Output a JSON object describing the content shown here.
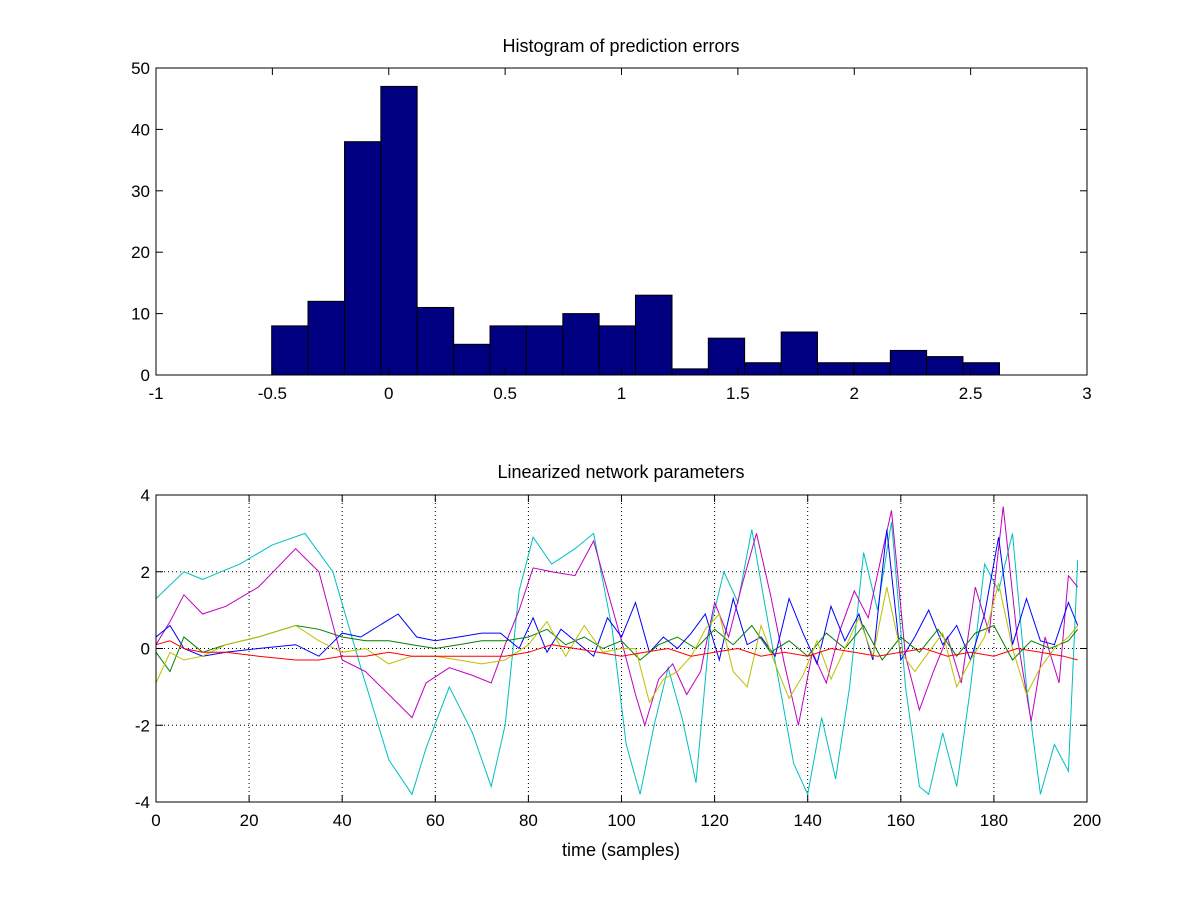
{
  "chart_data": [
    {
      "type": "bar",
      "title": "Histogram of prediction errors",
      "xlabel": "",
      "ylabel": "",
      "xlim": [
        -1,
        3
      ],
      "ylim": [
        0,
        50
      ],
      "xticks": [
        "-1",
        "-0.5",
        "0",
        "0.5",
        "1",
        "1.5",
        "2",
        "2.5",
        "3"
      ],
      "yticks": [
        "0",
        "10",
        "20",
        "30",
        "40",
        "50"
      ],
      "grid": false,
      "bar_color": "#000080",
      "bin_edges": [
        -0.503,
        -0.347,
        -0.19,
        -0.034,
        0.122,
        0.279,
        0.435,
        0.591,
        0.748,
        0.904,
        1.06,
        1.217,
        1.373,
        1.529,
        1.686,
        1.842,
        1.998,
        2.155,
        2.311,
        2.467,
        2.624
      ],
      "values": [
        8,
        12,
        38,
        47,
        11,
        5,
        8,
        8,
        10,
        8,
        13,
        1,
        6,
        2,
        7,
        2,
        2,
        4,
        3,
        2
      ]
    },
    {
      "type": "line",
      "title": "Linearized network parameters",
      "xlabel": "time (samples)",
      "ylabel": "",
      "xlim": [
        0,
        200
      ],
      "ylim": [
        -4,
        4
      ],
      "xticks": [
        "0",
        "20",
        "40",
        "60",
        "80",
        "100",
        "120",
        "140",
        "160",
        "180",
        "200"
      ],
      "yticks": [
        "-4",
        "-2",
        "0",
        "2",
        "4"
      ],
      "grid": true,
      "series": [
        {
          "color": "#00bfbf",
          "x": [
            0,
            6,
            10,
            18,
            25,
            32,
            38,
            44,
            50,
            55,
            58,
            63,
            68,
            72,
            75,
            78,
            81,
            85,
            90,
            94,
            98,
            101,
            104,
            107,
            110,
            113,
            116,
            119,
            122,
            125,
            128,
            131,
            134,
            137,
            140,
            143,
            146,
            149,
            152,
            155,
            158,
            161,
            164,
            166,
            169,
            172,
            175,
            178,
            181,
            184,
            187,
            190,
            193,
            196,
            198
          ],
          "y": [
            1.3,
            2.0,
            1.8,
            2.2,
            2.7,
            3.0,
            2.0,
            -0.5,
            -2.9,
            -3.8,
            -2.6,
            -1.0,
            -2.2,
            -3.6,
            -2.0,
            1.5,
            2.9,
            2.2,
            2.6,
            3.0,
            0.5,
            -2.5,
            -3.8,
            -2.0,
            -0.5,
            -1.8,
            -3.5,
            0.5,
            2.0,
            1.2,
            3.1,
            1.0,
            -1.0,
            -3.0,
            -3.8,
            -1.8,
            -3.4,
            -1.0,
            2.5,
            1.0,
            3.3,
            -1.0,
            -3.6,
            -3.8,
            -2.2,
            -3.6,
            -1.0,
            2.2,
            1.5,
            3.0,
            -1.0,
            -3.8,
            -2.5,
            -3.2,
            2.3
          ]
        },
        {
          "color": "#bf00bf",
          "x": [
            0,
            3,
            6,
            10,
            15,
            22,
            30,
            35,
            40,
            45,
            50,
            55,
            58,
            63,
            68,
            72,
            75,
            78,
            81,
            85,
            90,
            94,
            97,
            100,
            103,
            105,
            108,
            111,
            114,
            117,
            120,
            123,
            126,
            129,
            132,
            135,
            138,
            141,
            144,
            147,
            150,
            153,
            156,
            158,
            161,
            164,
            167,
            170,
            173,
            176,
            179,
            182,
            185,
            188,
            191,
            194,
            196,
            198
          ],
          "y": [
            0.1,
            0.7,
            1.4,
            0.9,
            1.1,
            1.6,
            2.6,
            2.0,
            -0.3,
            -0.6,
            -1.2,
            -1.8,
            -0.9,
            -0.5,
            -0.7,
            -0.9,
            0.1,
            1.0,
            2.1,
            2.0,
            1.9,
            2.8,
            1.5,
            0.2,
            -1.2,
            -2.0,
            -0.8,
            -0.4,
            -1.2,
            -0.6,
            1.2,
            0.3,
            1.7,
            3.0,
            1.4,
            -0.4,
            -2.0,
            -0.1,
            -0.9,
            0.5,
            1.5,
            0.8,
            2.5,
            3.6,
            -0.2,
            -1.6,
            -0.6,
            0.3,
            -0.9,
            1.6,
            0.4,
            3.7,
            0.3,
            -1.9,
            0.3,
            -0.9,
            1.9,
            1.6
          ]
        },
        {
          "color": "#0000ff",
          "x": [
            0,
            3,
            6,
            10,
            15,
            22,
            30,
            35,
            40,
            44,
            48,
            52,
            56,
            60,
            65,
            70,
            74,
            78,
            81,
            84,
            87,
            90,
            94,
            97,
            100,
            103,
            106,
            109,
            112,
            115,
            118,
            121,
            124,
            127,
            130,
            133,
            136,
            139,
            142,
            145,
            148,
            151,
            154,
            157,
            160,
            163,
            166,
            169,
            172,
            175,
            178,
            181,
            184,
            187,
            190,
            193,
            196,
            198
          ],
          "y": [
            0.3,
            0.6,
            0.0,
            -0.2,
            -0.1,
            0.0,
            0.1,
            -0.2,
            0.4,
            0.3,
            0.6,
            0.9,
            0.3,
            0.2,
            0.3,
            0.4,
            0.4,
            0.0,
            0.8,
            -0.1,
            0.5,
            0.2,
            -0.2,
            0.8,
            0.3,
            1.2,
            -0.1,
            0.3,
            0.0,
            0.4,
            0.9,
            -0.3,
            1.3,
            0.1,
            0.3,
            -0.2,
            1.3,
            0.4,
            -0.4,
            1.1,
            0.2,
            0.9,
            -0.3,
            3.1,
            -0.3,
            0.3,
            1.0,
            0.1,
            0.6,
            -0.3,
            0.9,
            2.9,
            0.1,
            1.3,
            0.2,
            0.1,
            1.2,
            0.6
          ]
        },
        {
          "color": "#008000",
          "x": [
            0,
            3,
            6,
            10,
            15,
            22,
            30,
            35,
            40,
            45,
            50,
            55,
            60,
            65,
            70,
            75,
            80,
            84,
            88,
            92,
            96,
            100,
            104,
            108,
            112,
            116,
            120,
            124,
            128,
            132,
            136,
            140,
            144,
            148,
            152,
            156,
            160,
            164,
            168,
            172,
            176,
            180,
            184,
            188,
            192,
            196,
            198
          ],
          "y": [
            -0.1,
            -0.6,
            0.3,
            -0.1,
            0.1,
            0.3,
            0.6,
            0.5,
            0.3,
            0.2,
            0.2,
            0.1,
            0.0,
            0.1,
            0.2,
            0.2,
            0.3,
            0.5,
            0.1,
            0.3,
            0.0,
            0.2,
            -0.3,
            0.1,
            0.3,
            0.0,
            0.5,
            0.1,
            0.6,
            -0.1,
            0.2,
            -0.2,
            0.4,
            0.0,
            0.6,
            -0.3,
            0.3,
            -0.1,
            0.5,
            -0.2,
            0.4,
            0.6,
            -0.3,
            0.2,
            0.0,
            0.2,
            0.5
          ]
        },
        {
          "color": "#bfbf00",
          "x": [
            0,
            3,
            6,
            10,
            15,
            22,
            30,
            35,
            40,
            45,
            50,
            55,
            60,
            65,
            70,
            75,
            80,
            84,
            88,
            92,
            96,
            100,
            103,
            106,
            109,
            112,
            115,
            118,
            121,
            124,
            127,
            130,
            133,
            136,
            139,
            142,
            145,
            148,
            151,
            154,
            157,
            160,
            163,
            166,
            169,
            172,
            175,
            178,
            181,
            184,
            187,
            190,
            193,
            196,
            198
          ],
          "y": [
            -0.9,
            -0.1,
            -0.3,
            -0.2,
            0.1,
            0.3,
            0.6,
            0.2,
            -0.1,
            0.0,
            -0.4,
            -0.2,
            -0.2,
            -0.3,
            -0.4,
            -0.3,
            0.1,
            0.7,
            -0.2,
            0.6,
            -0.1,
            0.0,
            0.0,
            -1.4,
            -0.8,
            -0.6,
            -0.2,
            0.5,
            0.9,
            -0.6,
            -1.0,
            0.6,
            -0.4,
            -1.3,
            -0.7,
            0.2,
            -0.8,
            0.0,
            0.8,
            -0.2,
            1.6,
            -0.1,
            -0.6,
            -0.1,
            0.4,
            -1.0,
            -0.3,
            0.3,
            1.7,
            0.0,
            -1.2,
            -0.5,
            0.0,
            0.3,
            0.6
          ]
        },
        {
          "color": "#ff0000",
          "x": [
            0,
            3,
            6,
            10,
            15,
            22,
            30,
            35,
            40,
            45,
            50,
            55,
            60,
            65,
            70,
            75,
            80,
            85,
            90,
            95,
            100,
            105,
            110,
            115,
            120,
            125,
            130,
            135,
            140,
            145,
            150,
            155,
            160,
            165,
            170,
            175,
            180,
            185,
            190,
            195,
            198
          ],
          "y": [
            0.1,
            0.2,
            0.0,
            -0.1,
            -0.1,
            -0.2,
            -0.3,
            -0.3,
            -0.2,
            -0.2,
            -0.1,
            -0.2,
            -0.2,
            -0.2,
            -0.2,
            -0.2,
            -0.1,
            0.1,
            0.0,
            -0.1,
            -0.2,
            -0.1,
            0.0,
            -0.2,
            -0.1,
            0.0,
            -0.2,
            -0.1,
            -0.2,
            0.0,
            -0.1,
            -0.2,
            -0.1,
            0.0,
            -0.2,
            -0.1,
            -0.2,
            0.0,
            -0.1,
            -0.2,
            -0.3
          ]
        }
      ]
    }
  ]
}
